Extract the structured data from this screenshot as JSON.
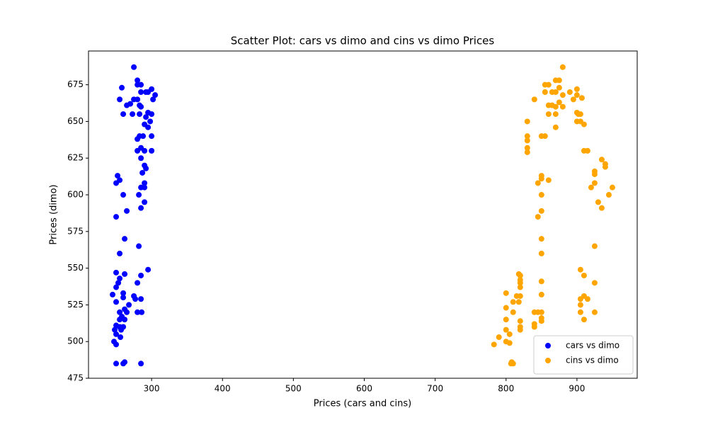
{
  "chart_data": {
    "type": "scatter",
    "title": "Scatter Plot: cars vs dimo and cins vs dimo Prices",
    "x_label": "Prices (cars and cins)",
    "y_label": "Prices (dimo)",
    "xlim": [
      211,
      985
    ],
    "ylim": [
      475,
      698
    ],
    "xticks": [
      300,
      400,
      500,
      600,
      700,
      800,
      900
    ],
    "yticks": [
      475,
      500,
      525,
      550,
      575,
      600,
      625,
      650,
      675
    ],
    "legend": "lower right",
    "series": [
      {
        "name": "cars vs dimo",
        "color": "#0000ff",
        "x": [
          275,
          280,
          285,
          280,
          258,
          292,
          300,
          305,
          285,
          295,
          255,
          275,
          280,
          302,
          270,
          265,
          283,
          285,
          260,
          273,
          283,
          295,
          300,
          292,
          298,
          290,
          295,
          288,
          283,
          300,
          280,
          285,
          280,
          290,
          300,
          285,
          290,
          292,
          287,
          252,
          255,
          250,
          290,
          285,
          290,
          260,
          282,
          290,
          285,
          265,
          250,
          262,
          282,
          255,
          295,
          250,
          262,
          285,
          255,
          253,
          280,
          250,
          245,
          260,
          275,
          277,
          285,
          260,
          250,
          268,
          262,
          255,
          265,
          280,
          286,
          258,
          255,
          262,
          250,
          255,
          260,
          248,
          257,
          250,
          256,
          247,
          250,
          250,
          260,
          262,
          285
        ],
        "values": [
          687,
          678,
          675,
          675,
          673,
          670,
          672,
          668,
          670,
          670,
          665,
          665,
          665,
          665,
          662,
          661,
          661,
          660,
          655,
          655,
          655,
          656,
          655,
          653,
          650,
          648,
          646,
          640,
          640,
          640,
          638,
          632,
          630,
          630,
          630,
          625,
          620,
          618,
          615,
          613,
          610,
          608,
          608,
          605,
          605,
          600,
          600,
          595,
          591,
          589,
          585,
          570,
          565,
          560,
          549,
          547,
          546,
          545,
          543,
          540,
          540,
          537,
          532,
          533,
          531,
          529,
          529,
          530,
          527,
          525,
          522,
          520,
          520,
          520,
          520,
          517,
          515,
          515,
          511,
          510,
          510,
          508,
          508,
          505,
          503,
          500,
          498,
          485,
          485,
          486,
          485
        ]
      },
      {
        "name": "cins vs dimo",
        "color": "#ffa500",
        "x": [
          880,
          870,
          875,
          855,
          860,
          875,
          890,
          900,
          865,
          870,
          880,
          900,
          840,
          855,
          895,
          907,
          860,
          865,
          870,
          880,
          875,
          900,
          902,
          905,
          860,
          870,
          830,
          900,
          905,
          910,
          870,
          850,
          855,
          830,
          830,
          830,
          830,
          910,
          915,
          935,
          940,
          940,
          925,
          925,
          850,
          850,
          860,
          845,
          925,
          920,
          950,
          850,
          945,
          930,
          935,
          850,
          845,
          850,
          925,
          850,
          905,
          910,
          818,
          820,
          820,
          820,
          850,
          820,
          925,
          850,
          800,
          820,
          815,
          910,
          905,
          915,
          810,
          818,
          905,
          800,
          810,
          840,
          845,
          850,
          905,
          925,
          850,
          850,
          800,
          820,
          840,
          840,
          820,
          820,
          800,
          805,
          910,
          790,
          800,
          805,
          783,
          808,
          810,
          807
        ],
        "values": [
          687,
          678,
          678,
          675,
          675,
          673,
          670,
          672,
          670,
          670,
          668,
          668,
          665,
          670,
          665,
          666,
          661,
          661,
          660,
          660,
          663,
          656,
          655,
          655,
          655,
          655,
          650,
          650,
          650,
          648,
          646,
          640,
          640,
          640,
          637,
          632,
          629,
          630,
          630,
          624,
          621,
          619,
          616,
          614,
          613,
          611,
          610,
          608,
          608,
          605,
          605,
          600,
          600,
          595,
          591,
          589,
          585,
          570,
          565,
          560,
          549,
          545,
          546,
          545,
          542,
          540,
          541,
          537,
          540,
          532,
          533,
          531,
          531,
          531,
          529,
          529,
          527,
          527,
          525,
          523,
          520,
          520,
          520,
          520,
          520,
          520,
          516,
          514,
          515,
          514,
          512,
          510,
          510,
          508,
          508,
          505,
          515,
          503,
          500,
          499,
          498,
          486,
          485,
          485
        ]
      }
    ]
  }
}
